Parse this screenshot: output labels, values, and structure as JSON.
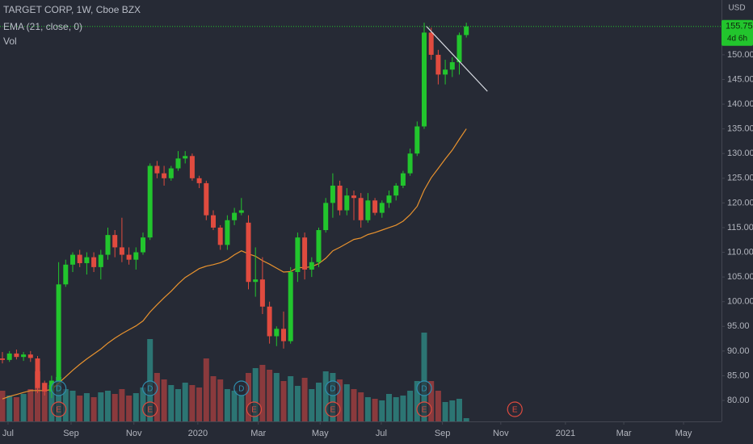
{
  "chart_data": {
    "type": "candlestick",
    "title": "TARGET CORP, 1W, Cboe BZX",
    "indicator_label": "EMA (21, close, 0)",
    "volume_label": "Vol",
    "currency": "USD",
    "up_color": "#22c52d",
    "down_color": "#e04b3f",
    "volume_up_color": "#2c7573",
    "volume_down_color": "#8a3a3d",
    "ema_color": "#e8922e",
    "open": [
      88.5,
      88.2,
      89.5,
      88.8,
      89.3,
      88.5,
      83.5,
      81.8,
      84,
      103.5,
      107.5,
      109.5,
      107.8,
      109,
      107,
      109.5,
      113.5,
      111,
      109.5,
      108.5,
      110,
      113,
      127.5,
      126,
      125,
      127,
      129,
      129.5,
      125,
      124,
      117.5,
      115,
      111.5,
      116.5,
      118,
      116,
      104,
      104.5,
      99,
      93,
      94.5,
      92,
      106,
      113,
      106.5,
      108,
      114.5,
      120,
      123.5,
      118.5,
      121.5,
      121,
      116.5,
      120.5,
      118,
      120,
      121.5,
      123.5,
      126,
      130,
      135.5,
      154.5,
      150,
      146,
      147,
      148.5,
      154
    ],
    "high": [
      89.8,
      90,
      90.3,
      89.8,
      90,
      89,
      84,
      85,
      108,
      108.5,
      110,
      110.5,
      110,
      110,
      110.5,
      115,
      114.5,
      117,
      111,
      111,
      114,
      128,
      128.5,
      127.5,
      127.5,
      130.5,
      130.5,
      130,
      125.5,
      124.5,
      118.5,
      115.5,
      117.5,
      119,
      121,
      117.5,
      111,
      109,
      100,
      95,
      98,
      107,
      114,
      114,
      109,
      115,
      121,
      126,
      124.5,
      123,
      122.5,
      122,
      122,
      121,
      120.5,
      122.5,
      124,
      126.5,
      131,
      136.5,
      156.5,
      155.5,
      151,
      149,
      149.5,
      154.5,
      156.5
    ],
    "low": [
      87.5,
      87.8,
      88.3,
      88,
      87.8,
      81.5,
      81,
      80.5,
      83.5,
      103,
      106,
      107,
      105.5,
      106,
      104.5,
      108.5,
      109,
      108,
      107.5,
      106.5,
      109.5,
      112.5,
      125,
      123.5,
      124.5,
      126.5,
      128,
      124.5,
      123,
      116.5,
      114.5,
      110.5,
      110.5,
      115.5,
      117.5,
      102.5,
      101,
      97.5,
      91.5,
      91,
      90.5,
      91.5,
      104,
      104.5,
      105,
      107,
      114,
      117,
      117.5,
      117.5,
      116.5,
      115,
      116,
      117.5,
      117,
      119,
      120.5,
      123,
      125.5,
      129.5,
      135,
      149,
      144,
      144,
      145.5,
      146,
      153.5
    ],
    "close": [
      88.2,
      89.5,
      88.8,
      89.3,
      88.6,
      82.5,
      81.8,
      84,
      103.5,
      107.5,
      109.5,
      107.8,
      109,
      107,
      109.5,
      113.5,
      111,
      109.5,
      108.5,
      110,
      113,
      127.5,
      126,
      125,
      127,
      129,
      129.5,
      125,
      124,
      117.5,
      115,
      111.5,
      116.5,
      118,
      118.5,
      104,
      104.5,
      99,
      93,
      94.5,
      92,
      106,
      113,
      106.5,
      108,
      114.5,
      120,
      123.5,
      118.5,
      121.5,
      121,
      116.5,
      120.5,
      118,
      120,
      121.5,
      123.5,
      126,
      130,
      135.5,
      154.5,
      150,
      146,
      147,
      148.5,
      154,
      155.75
    ],
    "volume": [
      38,
      32,
      30,
      34,
      40,
      62,
      48,
      45,
      55,
      40,
      38,
      32,
      35,
      30,
      36,
      38,
      34,
      40,
      32,
      35,
      42,
      102,
      60,
      52,
      45,
      40,
      48,
      45,
      42,
      78,
      56,
      52,
      40,
      38,
      32,
      60,
      66,
      70,
      64,
      60,
      50,
      56,
      44,
      54,
      40,
      48,
      62,
      60,
      52,
      46,
      40,
      36,
      30,
      28,
      26,
      34,
      30,
      32,
      38,
      50,
      110,
      50,
      38,
      24,
      26,
      28,
      4
    ],
    "ema": [
      80.3,
      80.8,
      81.2,
      81.6,
      82,
      82,
      82,
      82.2,
      83.5,
      84.8,
      86.1,
      87.3,
      88.4,
      89.4,
      90.4,
      91.6,
      92.6,
      93.5,
      94.3,
      95.1,
      96.1,
      97.9,
      99.4,
      100.8,
      102.1,
      103.6,
      104.9,
      105.8,
      106.7,
      107.2,
      107.5,
      107.9,
      108.5,
      109.5,
      110.3,
      109.7,
      109.2,
      108.3,
      107.6,
      106.8,
      106,
      106.1,
      106.9,
      106.9,
      107.1,
      107.7,
      108.8,
      110.3,
      111,
      111.8,
      112.6,
      112.9,
      113.6,
      114,
      114.5,
      115,
      115.5,
      116.3,
      117.6,
      119.3,
      122.6,
      125.1,
      127,
      128.9,
      130.7,
      132.9,
      135
    ],
    "last_price": 155.75,
    "countdown": "4d 6h",
    "xlim": [
      -0.345,
      102.3
    ],
    "ylim": [
      75.75,
      161.1
    ],
    "xticks": [
      {
        "value": 0.8,
        "label": "Jul"
      },
      {
        "value": 9.77,
        "label": "Sep"
      },
      {
        "value": 18.7,
        "label": "Nov"
      },
      {
        "value": 27.8,
        "label": "2020"
      },
      {
        "value": 36.4,
        "label": "Mar"
      },
      {
        "value": 45.2,
        "label": "May"
      },
      {
        "value": 53.9,
        "label": "Jul"
      },
      {
        "value": 62.6,
        "label": "Sep"
      },
      {
        "value": 70.9,
        "label": "Nov"
      },
      {
        "value": 80.1,
        "label": "2021"
      },
      {
        "value": 88.4,
        "label": "Mar"
      },
      {
        "value": 96.9,
        "label": "May"
      }
    ],
    "yticks": [
      {
        "value": 80,
        "label": "80.00"
      },
      {
        "value": 85,
        "label": "85.00"
      },
      {
        "value": 90,
        "label": "90.00"
      },
      {
        "value": 95,
        "label": "95.00"
      },
      {
        "value": 100,
        "label": "100.00"
      },
      {
        "value": 105,
        "label": "105.00"
      },
      {
        "value": 110,
        "label": "110.00"
      },
      {
        "value": 115,
        "label": "115.00"
      },
      {
        "value": 120,
        "label": "120.00"
      },
      {
        "value": 125,
        "label": "125.00"
      },
      {
        "value": 130,
        "label": "130.00"
      },
      {
        "value": 135,
        "label": "135.00"
      },
      {
        "value": 140,
        "label": "140.00"
      },
      {
        "value": 145,
        "label": "145.00"
      },
      {
        "value": 150,
        "label": "150.00"
      },
      {
        "value": 155,
        "label": "155.00"
      }
    ],
    "events": [
      {
        "x": 8,
        "label": "D"
      },
      {
        "x": 21,
        "label": "D"
      },
      {
        "x": 34,
        "label": "D"
      },
      {
        "x": 47,
        "label": "D"
      },
      {
        "x": 60,
        "label": "D"
      },
      {
        "x": 8,
        "label": "E"
      },
      {
        "x": 21,
        "label": "E"
      },
      {
        "x": 35.8,
        "label": "E"
      },
      {
        "x": 47,
        "label": "E"
      },
      {
        "x": 60,
        "label": "E"
      },
      {
        "x": 72.9,
        "label": "E"
      }
    ],
    "trendline": {
      "x": [
        60.3,
        69
      ],
      "y": [
        155.8,
        142.6
      ]
    }
  }
}
